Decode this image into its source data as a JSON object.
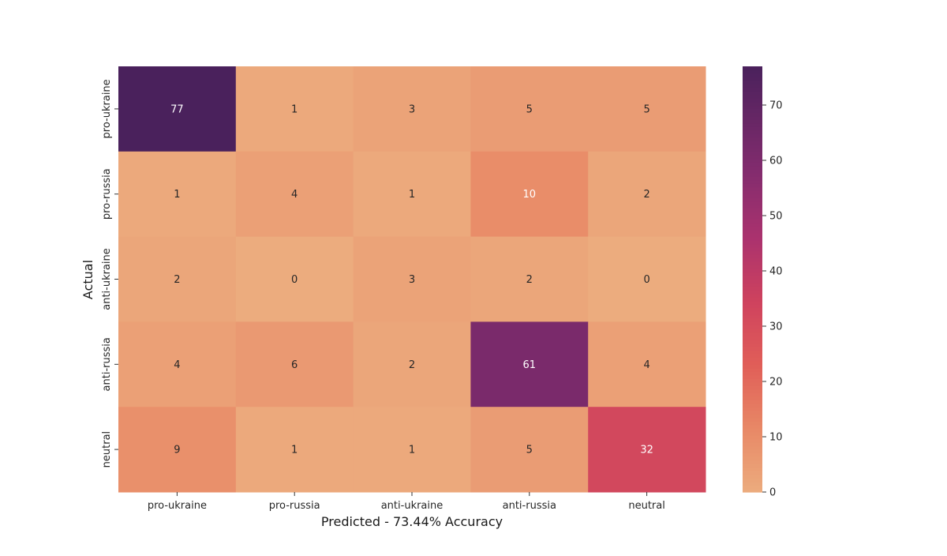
{
  "chart_data": {
    "type": "heatmap",
    "title": "",
    "xlabel": "Predicted - 73.44% Accuracy",
    "ylabel": "Actual",
    "x_categories": [
      "pro-ukraine",
      "pro-russia",
      "anti-ukraine",
      "anti-russia",
      "neutral"
    ],
    "y_categories": [
      "pro-ukraine",
      "pro-russia",
      "anti-ukraine",
      "anti-russia",
      "neutral"
    ],
    "values": [
      [
        77,
        1,
        3,
        5,
        5
      ],
      [
        1,
        4,
        1,
        10,
        2
      ],
      [
        2,
        0,
        3,
        2,
        0
      ],
      [
        4,
        6,
        2,
        61,
        4
      ],
      [
        9,
        1,
        1,
        5,
        32
      ]
    ],
    "colorscale": "flare",
    "vmin": 0,
    "vmax": 77,
    "colorbar_ticks": [
      0,
      10,
      20,
      30,
      40,
      50,
      60,
      70
    ]
  }
}
